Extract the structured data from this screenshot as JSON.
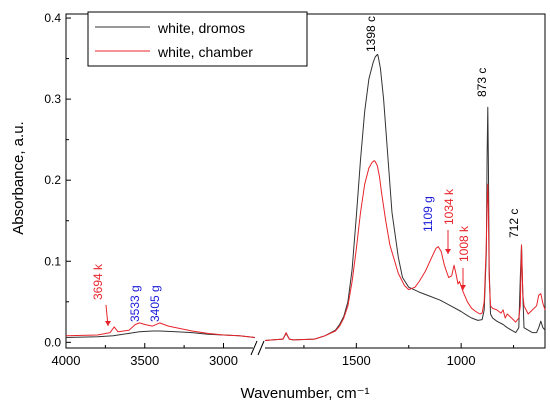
{
  "chart_data": {
    "type": "line",
    "title": "",
    "xlabel": "Wavenumber, cm⁻¹",
    "ylabel": "Absorbance, a.u.",
    "x_reversed": true,
    "axis_break": [
      2800,
      1950
    ],
    "xlim_segments": [
      [
        4000,
        2800
      ],
      [
        1950,
        600
      ]
    ],
    "ylim": [
      -0.007,
      0.405
    ],
    "x_ticks": [
      {
        "value": 4000,
        "label": "4000"
      },
      {
        "value": 3500,
        "label": "3500"
      },
      {
        "value": 3000,
        "label": "3000"
      },
      {
        "value": 1500,
        "label": "1500"
      },
      {
        "value": 1000,
        "label": "1000"
      }
    ],
    "y_ticks": [
      {
        "value": 0.0,
        "label": "0.0"
      },
      {
        "value": 0.1,
        "label": "0.1"
      },
      {
        "value": 0.2,
        "label": "0.2"
      },
      {
        "value": 0.3,
        "label": "0.3"
      },
      {
        "value": 0.4,
        "label": "0.4"
      }
    ],
    "legend": {
      "position": "top-left"
    },
    "series": [
      {
        "name": "white, dromos",
        "color": "#333333",
        "x": [
          4000,
          3800,
          3700,
          3600,
          3533,
          3450,
          3405,
          3300,
          3200,
          3100,
          3000,
          2900,
          2800,
          1950,
          1900,
          1850,
          1835,
          1820,
          1800,
          1700,
          1650,
          1600,
          1580,
          1560,
          1540,
          1520,
          1500,
          1480,
          1460,
          1440,
          1420,
          1410,
          1400,
          1398,
          1395,
          1385,
          1370,
          1350,
          1330,
          1300,
          1280,
          1250,
          1200,
          1150,
          1100,
          1050,
          1000,
          970,
          950,
          920,
          900,
          890,
          880,
          876,
          873,
          870,
          866,
          860,
          850,
          830,
          800,
          780,
          760,
          740,
          725,
          718,
          712,
          706,
          700,
          680,
          660,
          640,
          630,
          620,
          610,
          600
        ],
        "y": [
          0.006,
          0.007,
          0.008,
          0.011,
          0.013,
          0.014,
          0.014,
          0.013,
          0.012,
          0.01,
          0.009,
          0.008,
          0.006,
          0.002,
          0.003,
          0.004,
          0.011,
          0.004,
          0.003,
          0.004,
          0.008,
          0.015,
          0.022,
          0.032,
          0.05,
          0.09,
          0.155,
          0.225,
          0.285,
          0.325,
          0.345,
          0.352,
          0.355,
          0.355,
          0.352,
          0.338,
          0.3,
          0.23,
          0.16,
          0.105,
          0.08,
          0.068,
          0.062,
          0.057,
          0.052,
          0.045,
          0.038,
          0.033,
          0.03,
          0.027,
          0.028,
          0.04,
          0.11,
          0.23,
          0.29,
          0.22,
          0.09,
          0.035,
          0.03,
          0.026,
          0.022,
          0.018,
          0.015,
          0.012,
          0.018,
          0.08,
          0.12,
          0.06,
          0.018,
          0.015,
          0.012,
          0.012,
          0.018,
          0.026,
          0.018,
          0.015
        ]
      },
      {
        "name": "white, chamber",
        "color": "#e8242b",
        "x": [
          4000,
          3800,
          3720,
          3694,
          3670,
          3600,
          3560,
          3533,
          3500,
          3450,
          3405,
          3350,
          3300,
          3200,
          3100,
          3000,
          2900,
          2800,
          1950,
          1900,
          1850,
          1835,
          1820,
          1800,
          1700,
          1650,
          1600,
          1580,
          1560,
          1540,
          1520,
          1500,
          1480,
          1460,
          1440,
          1425,
          1415,
          1410,
          1400,
          1390,
          1380,
          1360,
          1340,
          1300,
          1270,
          1250,
          1220,
          1200,
          1170,
          1140,
          1120,
          1109,
          1095,
          1080,
          1060,
          1045,
          1034,
          1025,
          1015,
          1008,
          990,
          970,
          950,
          930,
          910,
          900,
          890,
          880,
          876,
          873,
          870,
          866,
          860,
          850,
          830,
          810,
          800,
          790,
          780,
          760,
          740,
          725,
          718,
          712,
          706,
          700,
          690,
          680,
          660,
          640,
          630,
          620,
          610,
          600
        ],
        "y": [
          0.008,
          0.009,
          0.012,
          0.019,
          0.013,
          0.015,
          0.022,
          0.024,
          0.022,
          0.02,
          0.024,
          0.02,
          0.018,
          0.014,
          0.011,
          0.009,
          0.008,
          0.006,
          0.002,
          0.003,
          0.004,
          0.012,
          0.004,
          0.003,
          0.004,
          0.008,
          0.014,
          0.02,
          0.03,
          0.045,
          0.075,
          0.115,
          0.16,
          0.195,
          0.215,
          0.222,
          0.224,
          0.223,
          0.218,
          0.205,
          0.185,
          0.15,
          0.12,
          0.085,
          0.07,
          0.065,
          0.068,
          0.075,
          0.088,
          0.105,
          0.116,
          0.118,
          0.112,
          0.095,
          0.08,
          0.082,
          0.095,
          0.085,
          0.072,
          0.075,
          0.062,
          0.05,
          0.042,
          0.038,
          0.035,
          0.036,
          0.05,
          0.12,
          0.17,
          0.195,
          0.16,
          0.08,
          0.045,
          0.042,
          0.04,
          0.036,
          0.04,
          0.03,
          0.035,
          0.03,
          0.025,
          0.03,
          0.045,
          0.12,
          0.06,
          0.045,
          0.04,
          0.035,
          0.04,
          0.045,
          0.058,
          0.06,
          0.048,
          0.04
        ]
      }
    ],
    "annotations": [
      {
        "text": "1398 c",
        "x": 1398,
        "color": "#000000",
        "rotated": true,
        "arrow": false
      },
      {
        "text": "873 c",
        "x": 873,
        "color": "#000000",
        "rotated": true,
        "arrow": false
      },
      {
        "text": "712 c",
        "x": 712,
        "color": "#000000",
        "rotated": true,
        "arrow": false
      },
      {
        "text": "1109 g",
        "x": 1109,
        "color": "#1a1adb",
        "rotated": true,
        "arrow": false
      },
      {
        "text": "1034 k",
        "x": 1034,
        "color": "#e8242b",
        "rotated": true,
        "arrow": true
      },
      {
        "text": "1008 k",
        "x": 1008,
        "color": "#e8242b",
        "rotated": true,
        "arrow": true
      },
      {
        "text": "3694 k",
        "x": 3694,
        "color": "#e8242b",
        "rotated": true,
        "arrow": true
      },
      {
        "text": "3533 g",
        "x": 3533,
        "color": "#1a1adb",
        "rotated": true,
        "arrow": false
      },
      {
        "text": "3405 g",
        "x": 3405,
        "color": "#1a1adb",
        "rotated": true,
        "arrow": false
      }
    ]
  }
}
